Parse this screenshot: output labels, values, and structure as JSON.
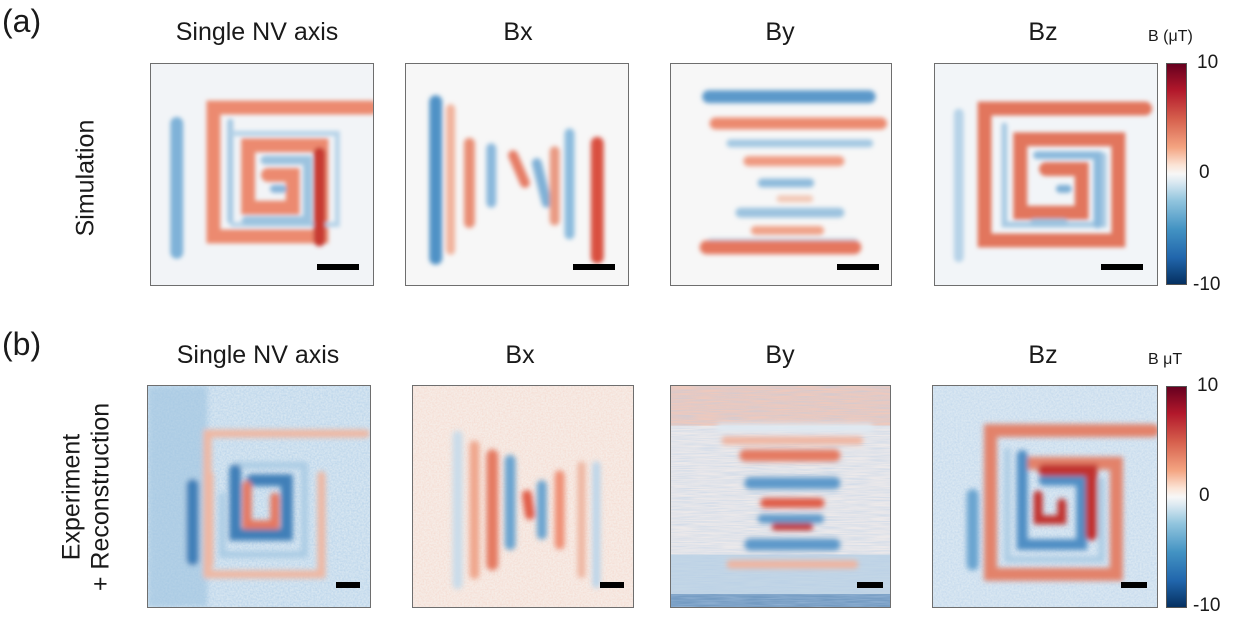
{
  "panels": [
    {
      "letter": "(a)",
      "row_label": [
        "Simulation"
      ],
      "columns": [
        "Single NV axis",
        "Bx",
        "By",
        "Bz"
      ],
      "colorbar": {
        "title": "B (μT)",
        "max": "10",
        "mid": "0",
        "min": "-10"
      }
    },
    {
      "letter": "(b)",
      "row_label": [
        "Experiment",
        "+ Reconstruction"
      ],
      "columns": [
        "Single NV axis",
        "Bx",
        "By",
        "Bz"
      ],
      "colorbar": {
        "title": "B μT",
        "max": "10",
        "mid": "0",
        "min": "-10"
      }
    }
  ],
  "colors": {
    "positive": "#e8715a",
    "positive_strong": "#c1332f",
    "negative": "#5a9bcb",
    "negative_strong": "#2a6aa8",
    "zero": "#f7f7f7"
  }
}
